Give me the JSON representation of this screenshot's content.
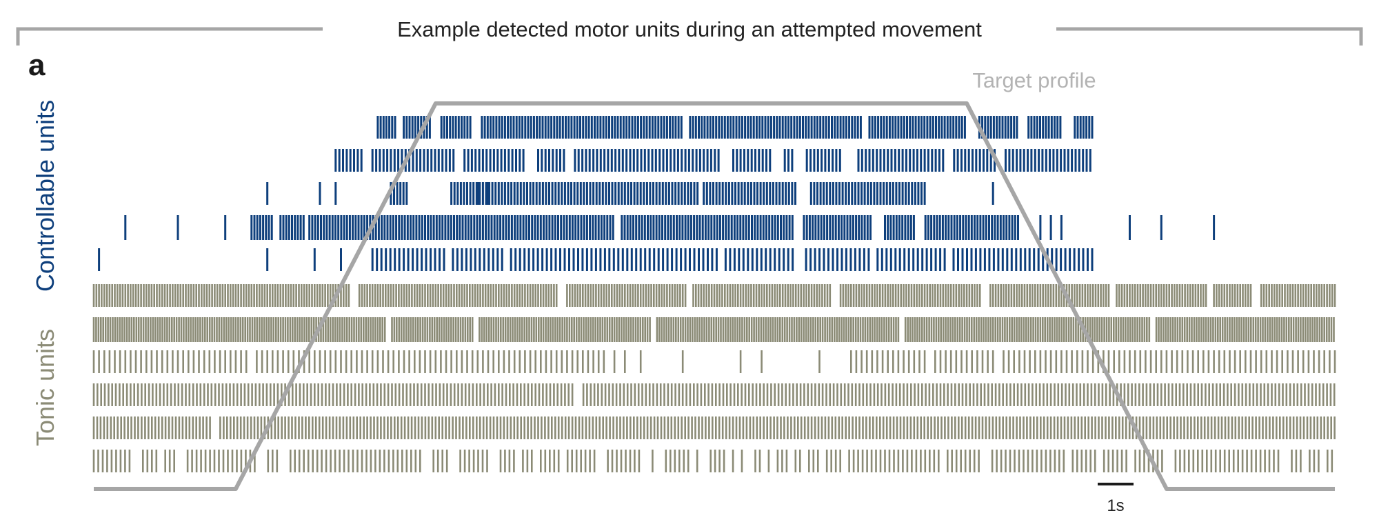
{
  "figure": {
    "title": "Example detected motor units during an attempted movement",
    "panel_label": "a"
  },
  "chart_data": {
    "type": "raster",
    "title": "Example detected motor units during an attempted movement",
    "x_range_s": [
      0,
      23.6
    ],
    "scale_bar": {
      "label": "1s",
      "duration_s": 1
    },
    "target_profile": {
      "label": "Target profile",
      "color": "#a6a6a6",
      "x": [
        0,
        2.7,
        6.5,
        16.6,
        20.4,
        23.6
      ],
      "y": [
        0,
        0,
        1,
        1,
        0,
        0
      ]
    },
    "groups": [
      {
        "name": "Controllable units",
        "color": "#0e3f7c",
        "units": [
          {
            "segments": [
              [
                5.4,
                19.0
              ]
            ],
            "isolated": [],
            "gaps": [
              [
                5.75,
                5.85
              ],
              [
                6.4,
                6.6
              ],
              [
                7.2,
                7.35
              ],
              [
                11.2,
                11.3
              ],
              [
                14.6,
                14.7
              ],
              [
                16.6,
                16.8
              ],
              [
                17.6,
                17.75
              ],
              [
                18.4,
                18.6
              ]
            ],
            "isi": 0.055
          },
          {
            "segments": [
              [
                4.6,
                19.0
              ]
            ],
            "isolated": [],
            "gaps": [
              [
                5.1,
                5.3
              ],
              [
                6.9,
                7.0
              ],
              [
                8.2,
                8.4
              ],
              [
                9.0,
                9.1
              ],
              [
                11.9,
                12.1
              ],
              [
                12.9,
                13.1
              ],
              [
                13.3,
                13.5
              ],
              [
                14.2,
                14.5
              ],
              [
                16.2,
                16.3
              ],
              [
                17.2,
                17.3
              ]
            ],
            "isi": 0.07
          },
          {
            "segments": [
              [
                5.65,
                6.0
              ],
              [
                6.8,
                15.8
              ]
            ],
            "isolated": [
              3.3,
              4.3,
              4.6,
              7.3,
              7.5,
              17.1
            ],
            "gaps": [
              [
                11.5,
                11.6
              ],
              [
                13.4,
                13.6
              ]
            ],
            "isi": 0.06
          },
          {
            "segments": [
              [
                3.0,
                17.6
              ]
            ],
            "isolated": [
              0.6,
              1.6,
              2.5,
              18.0,
              18.2,
              18.4,
              19.7,
              20.3,
              21.3
            ],
            "gaps": [
              [
                3.4,
                3.5
              ],
              [
                4.0,
                4.1
              ],
              [
                9.9,
                10.0
              ],
              [
                13.3,
                13.5
              ],
              [
                14.8,
                15.0
              ],
              [
                15.6,
                15.8
              ]
            ],
            "isi": 0.055
          },
          {
            "segments": [
              [
                5.3,
                19.0
              ]
            ],
            "isolated": [
              0.1,
              3.3,
              4.2,
              4.7
            ],
            "gaps": [
              [
                6.7,
                6.8
              ],
              [
                7.8,
                7.9
              ],
              [
                11.9,
                12.0
              ],
              [
                13.3,
                13.5
              ],
              [
                14.8,
                14.9
              ],
              [
                16.2,
                16.3
              ]
            ],
            "isi": 0.085
          }
        ]
      },
      {
        "name": "Tonic units",
        "color": "#8b8b76",
        "units": [
          {
            "segments": [
              [
                0.0,
                23.6
              ]
            ],
            "isolated": [],
            "gaps": [
              [
                4.85,
                5.0
              ],
              [
                8.8,
                8.95
              ],
              [
                11.3,
                11.4
              ],
              [
                14.05,
                14.2
              ],
              [
                16.9,
                17.05
              ],
              [
                19.35,
                19.45
              ],
              [
                21.2,
                21.3
              ],
              [
                22.05,
                22.2
              ]
            ],
            "isi": 0.05
          },
          {
            "segments": [
              [
                0.0,
                23.6
              ]
            ],
            "isolated": [],
            "gaps": [
              [
                5.55,
                5.65
              ],
              [
                7.2,
                7.3
              ],
              [
                10.6,
                10.7
              ],
              [
                15.3,
                15.4
              ],
              [
                20.1,
                20.2
              ]
            ],
            "isi": 0.045
          },
          {
            "segments": [
              [
                0.0,
                9.7
              ],
              [
                14.4,
                23.6
              ]
            ],
            "isolated": [
              9.9,
              10.1,
              10.4,
              11.2,
              12.3,
              12.7,
              13.8
            ],
            "gaps": [
              [
                2.95,
                3.1
              ],
              [
                15.8,
                15.9
              ],
              [
                17.2,
                17.3
              ]
            ],
            "isi": 0.1
          },
          {
            "segments": [
              [
                0.0,
                23.6
              ]
            ],
            "isolated": [],
            "gaps": [
              [
                9.15,
                9.25
              ]
            ],
            "isi": 0.07
          },
          {
            "segments": [
              [
                0.0,
                23.6
              ]
            ],
            "isolated": [],
            "gaps": [
              [
                2.25,
                2.4
              ]
            ],
            "isi": 0.065
          },
          {
            "segments": [
              [
                0.0,
                23.6
              ]
            ],
            "isolated": [],
            "gaps": [
              [
                0.7,
                0.85
              ],
              [
                1.25,
                1.35
              ],
              [
                1.55,
                1.7
              ],
              [
                3.1,
                3.25
              ],
              [
                3.55,
                3.7
              ],
              [
                6.25,
                6.4
              ],
              [
                6.75,
                6.9
              ],
              [
                7.55,
                7.65
              ],
              [
                8.05,
                8.15
              ],
              [
                8.35,
                8.45
              ],
              [
                8.9,
                9.0
              ],
              [
                9.6,
                9.75
              ],
              [
                10.45,
                10.6
              ],
              [
                10.7,
                10.8
              ],
              [
                11.35,
                11.45
              ],
              [
                11.55,
                11.7
              ],
              [
                12.0,
                12.1
              ],
              [
                12.2,
                12.3
              ],
              [
                12.4,
                12.5
              ],
              [
                12.7,
                12.8
              ],
              [
                12.85,
                12.95
              ],
              [
                13.2,
                13.3
              ],
              [
                13.5,
                13.6
              ],
              [
                13.8,
                13.9
              ],
              [
                14.2,
                14.3
              ],
              [
                16.1,
                16.2
              ],
              [
                16.9,
                17.05
              ],
              [
                18.5,
                18.6
              ],
              [
                19.05,
                19.15
              ],
              [
                19.65,
                19.75
              ],
              [
                20.4,
                20.5
              ],
              [
                22.6,
                22.7
              ],
              [
                23.0,
                23.1
              ],
              [
                23.35,
                23.45
              ]
            ],
            "isi": 0.085
          }
        ]
      }
    ]
  }
}
